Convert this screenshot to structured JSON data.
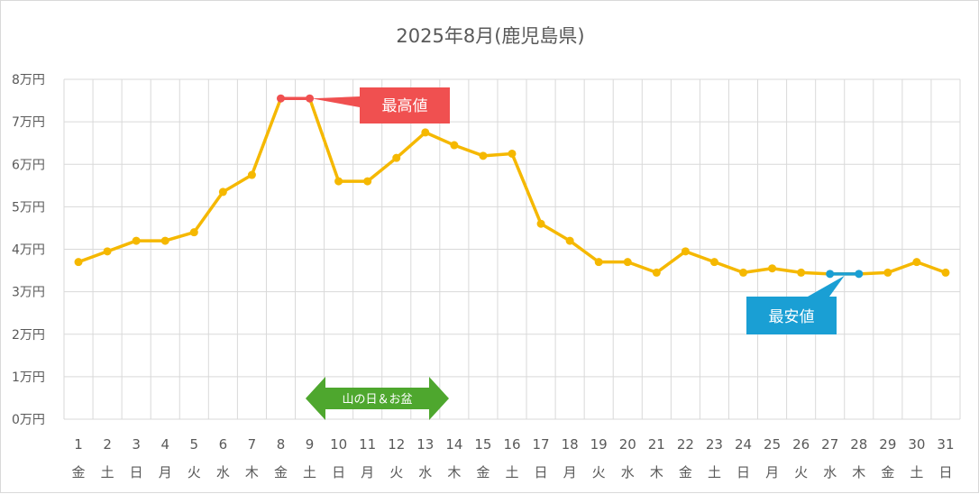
{
  "chart_data": {
    "type": "line",
    "title": "2025年8月(鹿児島県)",
    "xlabel": "",
    "ylabel": "",
    "ylim": [
      0,
      8
    ],
    "yticks": [
      "0万円",
      "1万円",
      "2万円",
      "3万円",
      "4万円",
      "5万円",
      "6万円",
      "7万円",
      "8万円"
    ],
    "categories": [
      "1",
      "2",
      "3",
      "4",
      "5",
      "6",
      "7",
      "8",
      "9",
      "10",
      "11",
      "12",
      "13",
      "14",
      "15",
      "16",
      "17",
      "18",
      "19",
      "20",
      "21",
      "22",
      "23",
      "24",
      "25",
      "26",
      "27",
      "28",
      "29",
      "30",
      "31"
    ],
    "weekdays": [
      "金",
      "土",
      "日",
      "月",
      "火",
      "水",
      "木",
      "金",
      "土",
      "日",
      "月",
      "火",
      "水",
      "木",
      "金",
      "土",
      "日",
      "月",
      "火",
      "水",
      "木",
      "金",
      "土",
      "日",
      "月",
      "火",
      "水",
      "木",
      "金",
      "土",
      "日"
    ],
    "series": [
      {
        "values": [
          3.7,
          3.95,
          4.2,
          4.2,
          4.4,
          5.35,
          5.75,
          7.55,
          7.55,
          5.6,
          5.6,
          6.15,
          6.75,
          6.45,
          6.2,
          6.25,
          4.6,
          4.2,
          3.7,
          3.7,
          3.45,
          3.95,
          3.7,
          3.45,
          3.55,
          3.45,
          3.42,
          3.42,
          3.45,
          3.7,
          3.45
        ],
        "color": "#f5b800"
      }
    ],
    "highlight_max": {
      "label": "最高値",
      "days": [
        8,
        9
      ],
      "color": "#f05050"
    },
    "highlight_min": {
      "label": "最安値",
      "days": [
        27,
        28
      ],
      "color": "#1a9fd4"
    },
    "period_annotation": {
      "label": "山の日＆お盆",
      "from_day": 9,
      "to_day": 13,
      "color": "#4ea72e"
    },
    "grid": true,
    "legend": "none"
  }
}
